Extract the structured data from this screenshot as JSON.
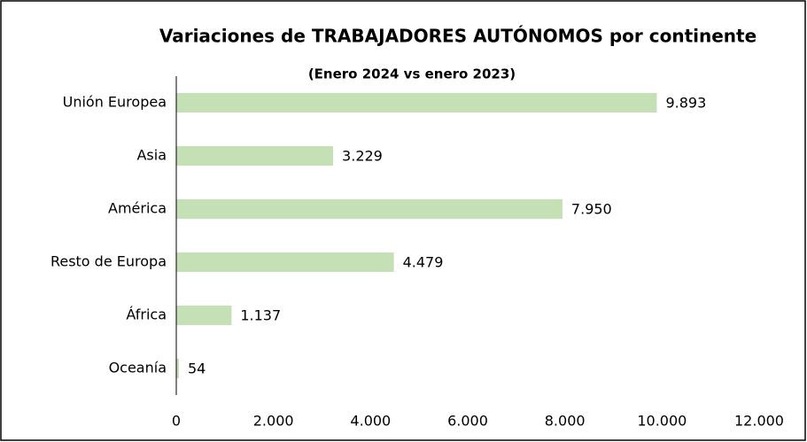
{
  "chart_data": {
    "type": "hbar",
    "title": "Variaciones de TRABAJADORES AUTÓNOMOS por continente",
    "subtitle": "(Enero 2024 vs enero 2023)",
    "categories": [
      "Unión Europea",
      "Asia",
      "América",
      "Resto de Europa",
      "África",
      "Oceanía"
    ],
    "values": [
      9893,
      3229,
      7950,
      4479,
      1137,
      54
    ],
    "value_labels": [
      "9.893",
      "3.229",
      "7.950",
      "4.479",
      "1.137",
      "54"
    ],
    "color": "#c5e0b4",
    "xlim": [
      0,
      12000
    ],
    "xticks": [
      0,
      {
        "value": 2000,
        "label": "2.000"
      },
      {
        "value": 4000,
        "label": "4.000"
      },
      {
        "value": 6000,
        "label": "6.000"
      },
      {
        "value": 8000,
        "label": "8.000"
      },
      {
        "value": 10000,
        "label": "10.000"
      },
      {
        "value": 12000,
        "label": "12.000"
      }
    ],
    "grid": false
  }
}
